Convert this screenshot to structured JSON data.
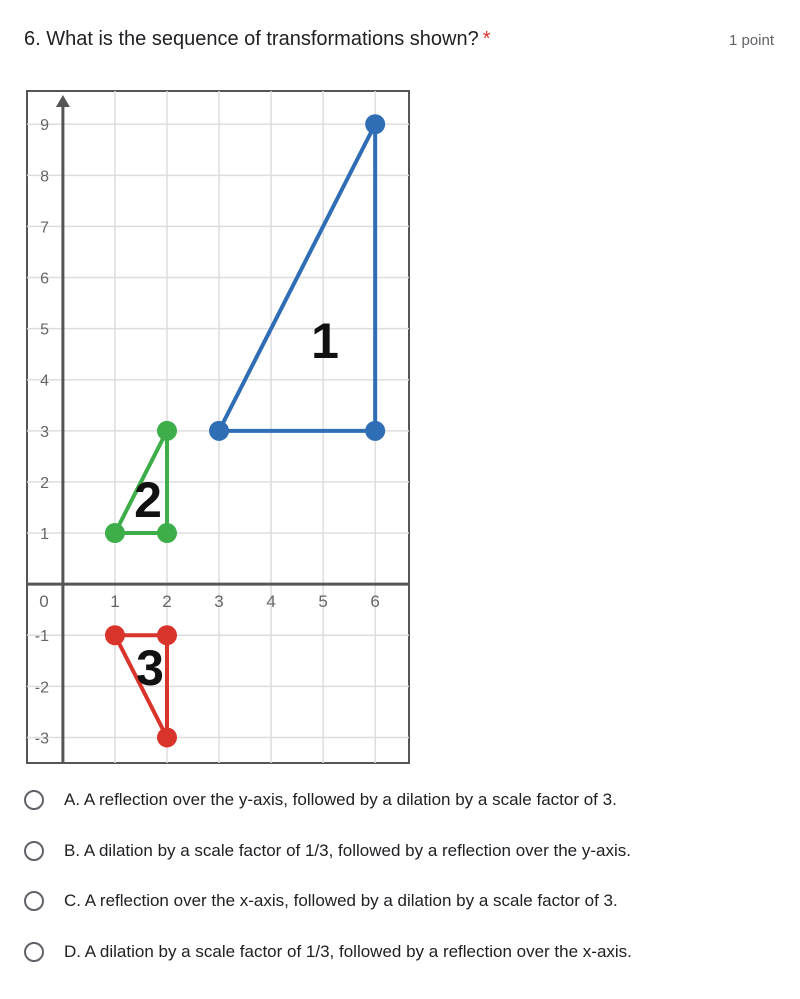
{
  "question": {
    "title": "6. What is the sequence of transformations shown?",
    "required": "*",
    "points": "1 point"
  },
  "figure": {
    "xlim": [
      -0.69,
      6.65
    ],
    "ylim": [
      -3.5,
      9.65
    ],
    "xticks": [
      1,
      2,
      3,
      4,
      5,
      6
    ],
    "yticks": [
      -3,
      -2,
      -1,
      1,
      2,
      3,
      4,
      5,
      6,
      7,
      8,
      9
    ],
    "origin_label": 0,
    "triangles": [
      {
        "label": "1",
        "color": "#2f6db5",
        "x": [
          3,
          6,
          6
        ],
        "y": [
          3,
          3,
          9
        ]
      },
      {
        "label": "2",
        "color": "#3dae49",
        "x": [
          1,
          2,
          2
        ],
        "y": [
          1,
          1,
          3
        ]
      },
      {
        "label": "3",
        "color": "#d9342b",
        "x": [
          1,
          2,
          2
        ],
        "y": [
          -1,
          -1,
          -3
        ]
      }
    ]
  },
  "options": [
    "A. A reflection over the y-axis, followed by a dilation by a scale factor of 3.",
    "B. A dilation by a scale factor of 1/3, followed by a reflection over the y-axis.",
    "C. A reflection over the x-axis, followed by a dilation by a scale factor of 3.",
    "D. A dilation by a scale factor of 1/3, followed by a reflection over the x-axis."
  ]
}
